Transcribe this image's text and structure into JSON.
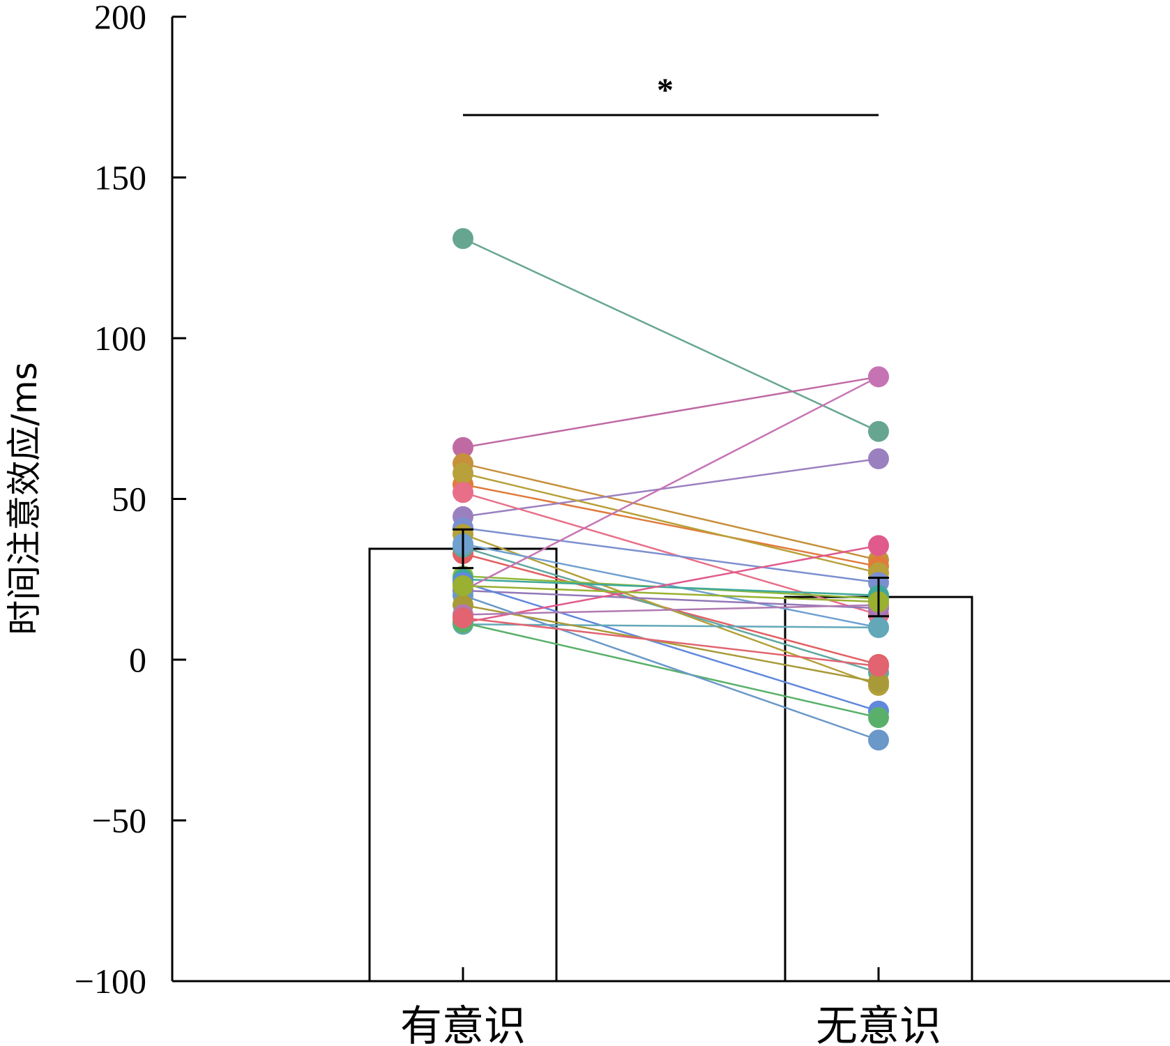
{
  "chart_data": {
    "type": "bar",
    "ylabel": "时间注意效应/ms",
    "ylim": [
      -100,
      200
    ],
    "yticks": [
      200,
      150,
      100,
      50,
      0,
      -50,
      -100
    ],
    "ytick_labels": [
      "200",
      "150",
      "100",
      "50",
      "0",
      "−50",
      "−100"
    ],
    "categories": [
      "有意识",
      "无意识"
    ],
    "bars": [
      {
        "category": "有意识",
        "mean": 34.5,
        "err_low": 28.5,
        "err_high": 40.5
      },
      {
        "category": "无意识",
        "mean": 19.5,
        "err_low": 13.5,
        "err_high": 25.5
      }
    ],
    "significance": {
      "label": "*",
      "between": [
        "有意识",
        "无意识"
      ]
    },
    "subjects": [
      {
        "color": "#66a690",
        "values": [
          131,
          71
        ]
      },
      {
        "color": "#c06aa4",
        "values": [
          66,
          88
        ]
      },
      {
        "color": "#c6903c",
        "values": [
          61,
          31
        ]
      },
      {
        "color": "#e07b3b",
        "values": [
          54.5,
          29
        ]
      },
      {
        "color": "#9b80c0",
        "values": [
          44.5,
          62.5
        ]
      },
      {
        "color": "#b8a03a",
        "values": [
          58,
          27
        ]
      },
      {
        "color": "#e86f88",
        "values": [
          52,
          14
        ]
      },
      {
        "color": "#7b8fd0",
        "values": [
          41,
          24
        ]
      },
      {
        "color": "#e25f62",
        "values": [
          33,
          -1.5
        ]
      },
      {
        "color": "#5fa7a0",
        "values": [
          35,
          -4
        ]
      },
      {
        "color": "#8db93a",
        "values": [
          26,
          19
        ]
      },
      {
        "color": "#b3a03a",
        "values": [
          39,
          -8
        ]
      },
      {
        "color": "#6fa0d0",
        "values": [
          36,
          10
        ]
      },
      {
        "color": "#3fa89a",
        "values": [
          25,
          20
        ]
      },
      {
        "color": "#c673b4",
        "values": [
          21.5,
          88
        ]
      },
      {
        "color": "#9377b8",
        "values": [
          21.5,
          16
        ]
      },
      {
        "color": "#6088dd",
        "values": [
          24,
          -16
        ]
      },
      {
        "color": "#e05a8c",
        "values": [
          11.5,
          35.5
        ]
      },
      {
        "color": "#62a8b8",
        "values": [
          11,
          10
        ]
      },
      {
        "color": "#5ab06a",
        "values": [
          11.5,
          -18
        ]
      },
      {
        "color": "#6a98c8",
        "values": [
          20,
          -25
        ]
      },
      {
        "color": "#a89a38",
        "values": [
          17,
          -7
        ]
      },
      {
        "color": "#b07ab0",
        "values": [
          14,
          17
        ]
      },
      {
        "color": "#e16470",
        "values": [
          13,
          -2
        ]
      },
      {
        "color": "#99b030",
        "values": [
          23,
          18
        ]
      }
    ]
  }
}
